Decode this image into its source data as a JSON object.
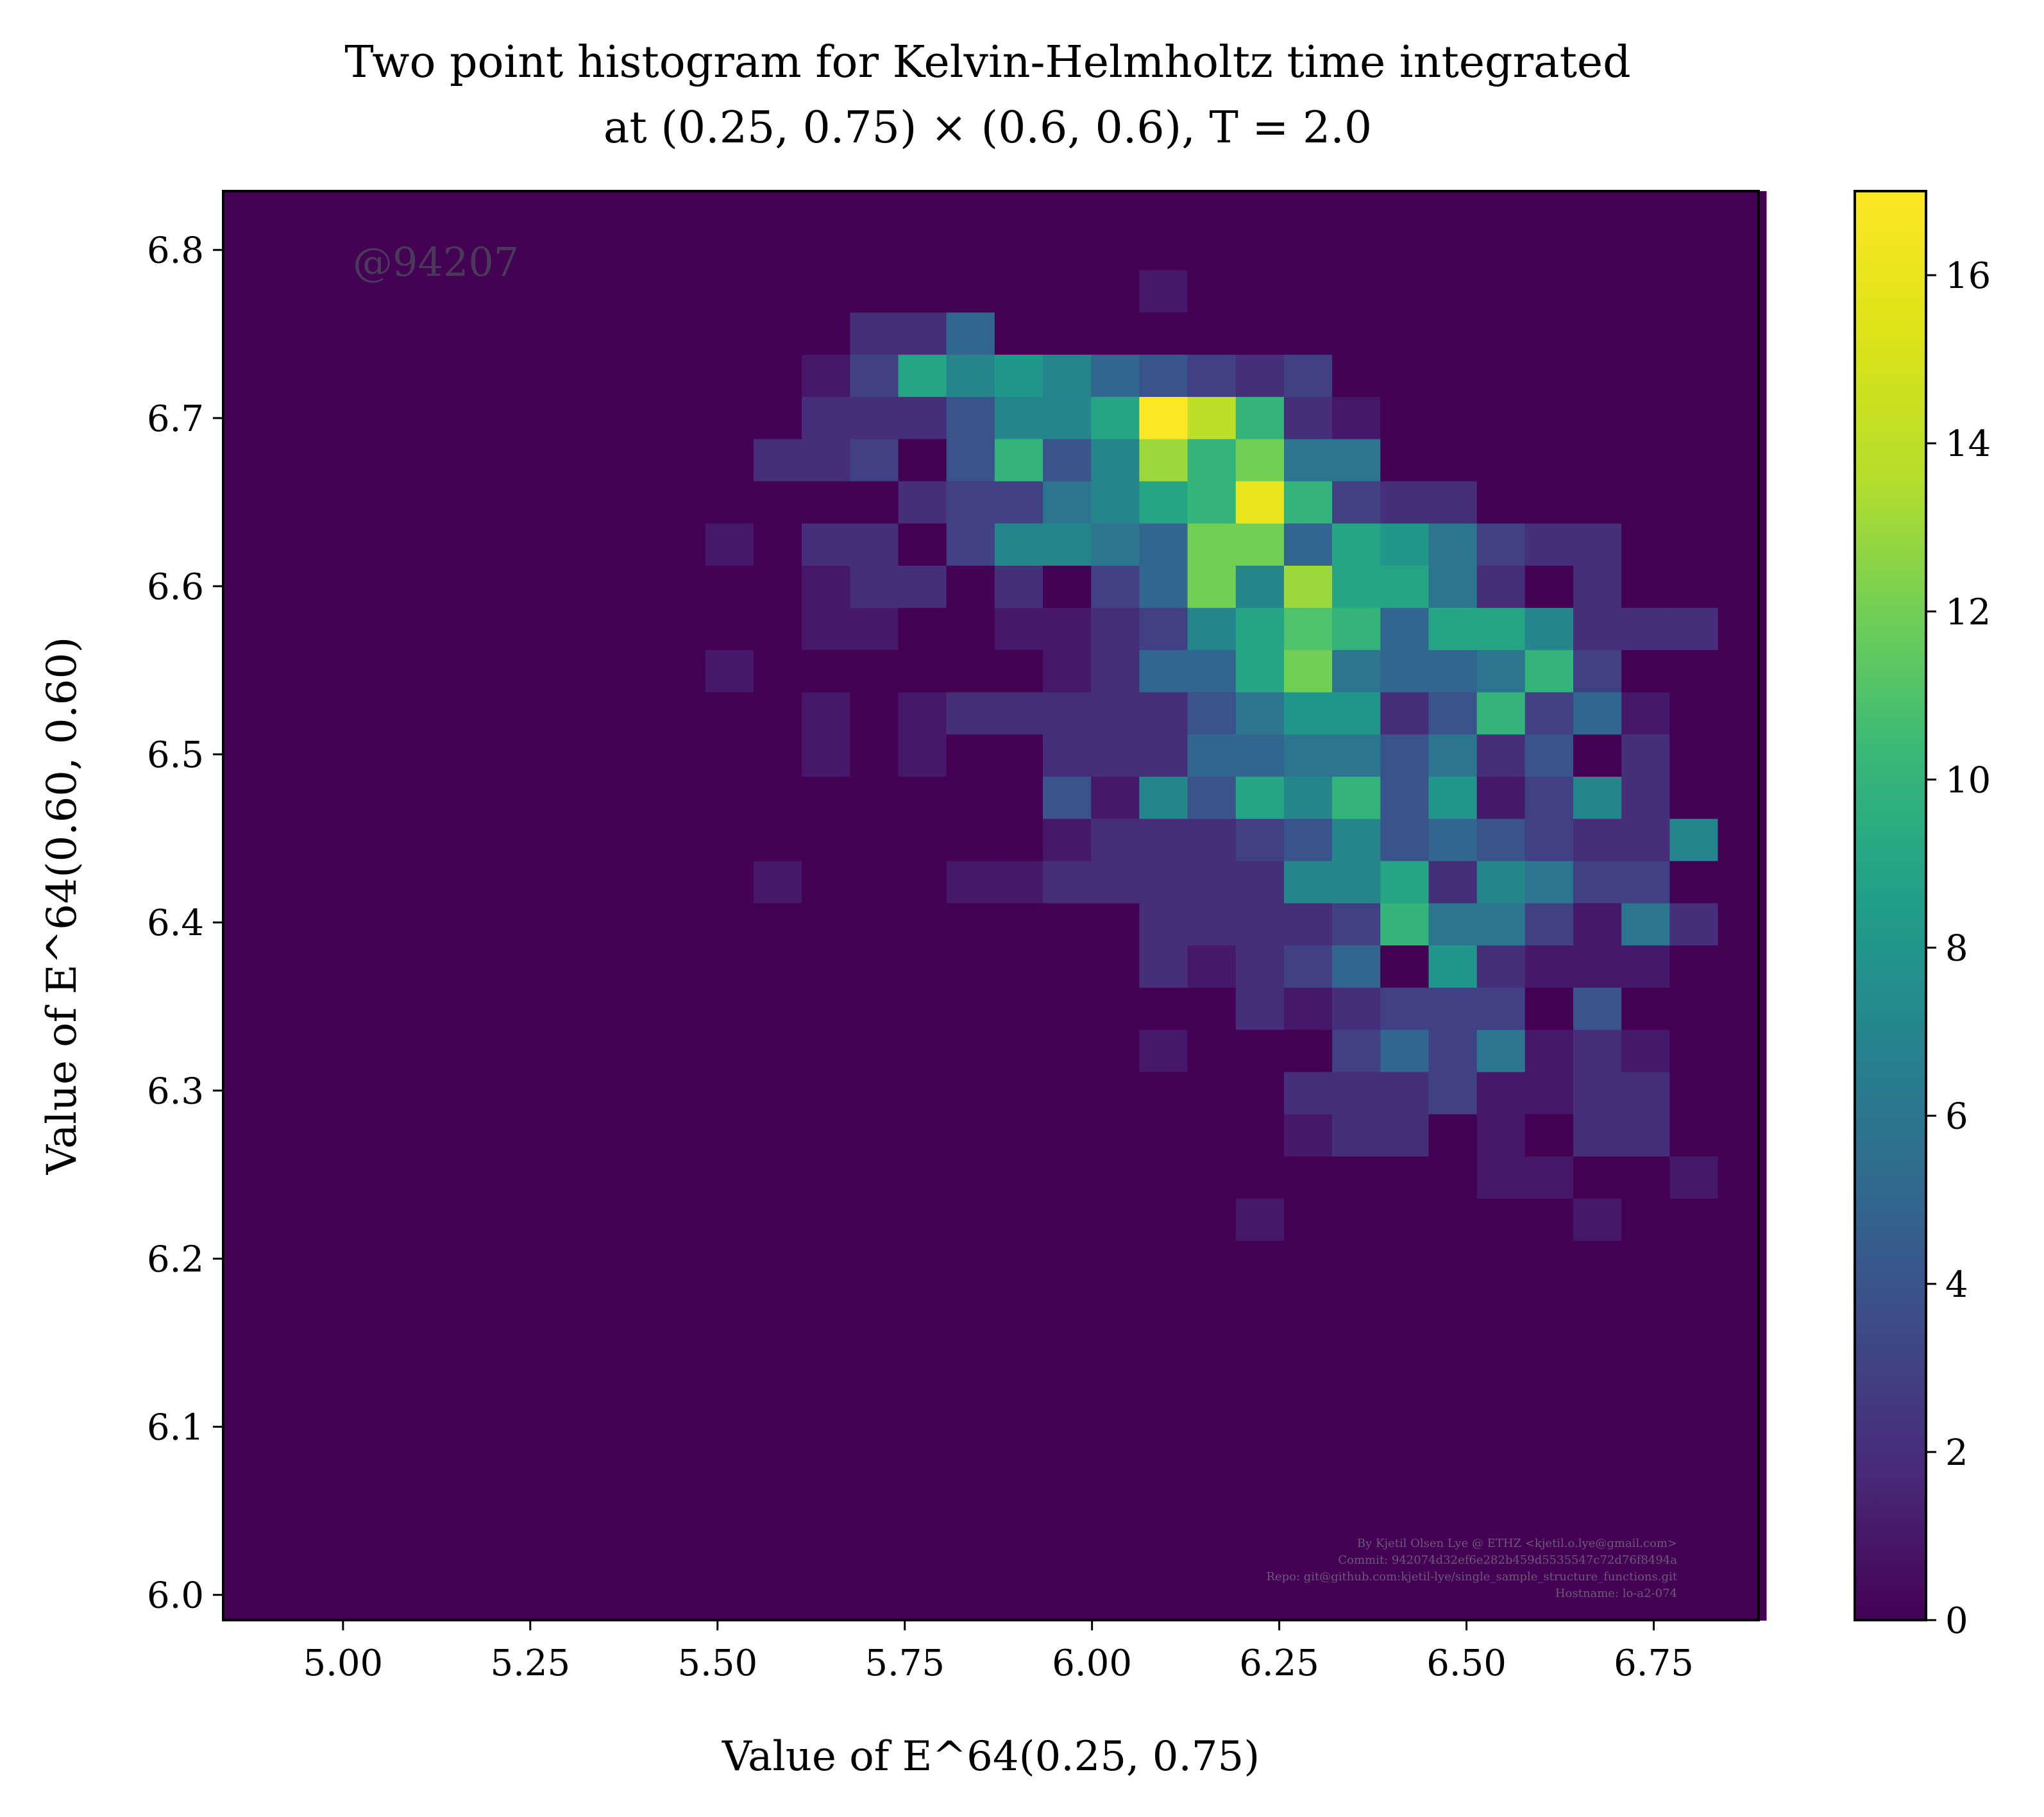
{
  "chart_data": {
    "type": "heatmap",
    "title": [
      "Two point histogram for Kelvin-Helmholtz time integrated",
      "at (0.25, 0.75) × (0.6, 0.6), T = 2.0"
    ],
    "xlabel": "Value of E^64(0.25, 0.75)",
    "ylabel": "Value of E^64(0.60, 0.60)",
    "xlim": [
      4.84,
      6.89
    ],
    "ylim": [
      5.985,
      6.835
    ],
    "x_ticks": [
      "5.00",
      "5.25",
      "5.50",
      "5.75",
      "6.00",
      "6.25",
      "6.50",
      "6.75"
    ],
    "y_ticks": [
      "6.0",
      "6.1",
      "6.2",
      "6.3",
      "6.4",
      "6.5",
      "6.6",
      "6.7",
      "6.8"
    ],
    "colorbar_ticks": [
      "0",
      "2",
      "4",
      "6",
      "8",
      "10",
      "12",
      "14",
      "16"
    ],
    "colorbar_range": [
      0,
      17
    ],
    "colormap": "viridis",
    "x_edges": [
      4.84,
      4.9044,
      4.9688,
      5.0331,
      5.0975,
      5.1619,
      5.2263,
      5.2906,
      5.355,
      5.4194,
      5.4838,
      5.5481,
      5.6125,
      5.6769,
      5.7413,
      5.8056,
      5.87,
      5.9344,
      5.9988,
      6.0631,
      6.1275,
      6.1919,
      6.2563,
      6.3206,
      6.385,
      6.4494,
      6.5138,
      6.5781,
      6.6425,
      6.7069,
      6.7713,
      6.8356,
      6.9
    ],
    "y_edges": [
      5.985,
      6.0101,
      6.0352,
      6.0603,
      6.0854,
      6.1105,
      6.1356,
      6.1607,
      6.1858,
      6.2109,
      6.236,
      6.2611,
      6.2862,
      6.3113,
      6.3364,
      6.3615,
      6.3866,
      6.4117,
      6.4368,
      6.4619,
      6.487,
      6.5121,
      6.5372,
      6.5623,
      6.5874,
      6.6125,
      6.6376,
      6.6627,
      6.6878,
      6.7129,
      6.738,
      6.7631,
      6.7882,
      6.8133,
      6.835
    ],
    "counts": [
      [
        0,
        0,
        0,
        0,
        0,
        0,
        0,
        0,
        0,
        0,
        0,
        0,
        0,
        0,
        0,
        0,
        0,
        0,
        0,
        0,
        0,
        0,
        0,
        0,
        0,
        0,
        0,
        0,
        0,
        0,
        0,
        0
      ],
      [
        0,
        0,
        0,
        0,
        0,
        0,
        0,
        0,
        0,
        0,
        0,
        0,
        0,
        0,
        0,
        0,
        0,
        0,
        0,
        0,
        0,
        0,
        0,
        0,
        0,
        0,
        0,
        0,
        0,
        0,
        0,
        0
      ],
      [
        0,
        0,
        0,
        0,
        0,
        0,
        0,
        0,
        0,
        0,
        0,
        0,
        0,
        0,
        0,
        0,
        0,
        0,
        0,
        0,
        0,
        0,
        0,
        0,
        0,
        0,
        0,
        0,
        0,
        0,
        0,
        0
      ],
      [
        0,
        0,
        0,
        0,
        0,
        0,
        0,
        0,
        0,
        0,
        0,
        0,
        0,
        0,
        0,
        0,
        0,
        0,
        0,
        0,
        0,
        0,
        0,
        0,
        0,
        0,
        0,
        0,
        0,
        0,
        0,
        0
      ],
      [
        0,
        0,
        0,
        0,
        0,
        0,
        0,
        0,
        0,
        0,
        0,
        0,
        0,
        0,
        0,
        0,
        0,
        0,
        0,
        0,
        0,
        0,
        0,
        0,
        0,
        0,
        0,
        0,
        0,
        0,
        0,
        0
      ],
      [
        0,
        0,
        0,
        0,
        0,
        0,
        0,
        0,
        0,
        0,
        0,
        0,
        0,
        0,
        0,
        0,
        0,
        0,
        0,
        0,
        0,
        0,
        0,
        0,
        0,
        0,
        0,
        0,
        0,
        0,
        0,
        0
      ],
      [
        0,
        0,
        0,
        0,
        0,
        0,
        0,
        0,
        0,
        0,
        0,
        0,
        0,
        0,
        0,
        0,
        0,
        0,
        0,
        0,
        0,
        0,
        0,
        0,
        0,
        0,
        0,
        0,
        0,
        0,
        0,
        0
      ],
      [
        0,
        0,
        0,
        0,
        0,
        0,
        0,
        0,
        0,
        0,
        0,
        0,
        0,
        0,
        0,
        0,
        0,
        0,
        0,
        0,
        0,
        0,
        0,
        0,
        0,
        0,
        0,
        0,
        0,
        0,
        0,
        0
      ],
      [
        0,
        0,
        0,
        0,
        0,
        0,
        0,
        0,
        0,
        0,
        0,
        0,
        0,
        0,
        0,
        0,
        0,
        0,
        0,
        0,
        0,
        0,
        0,
        0,
        0,
        0,
        0,
        0,
        0,
        0,
        0,
        0
      ],
      [
        0,
        0,
        0,
        0,
        0,
        0,
        0,
        0,
        0,
        0,
        0,
        0,
        0,
        0,
        0,
        0,
        0,
        0,
        0,
        0,
        0,
        1,
        0,
        0,
        0,
        0,
        0,
        0,
        1,
        0,
        0,
        0
      ],
      [
        0,
        0,
        0,
        0,
        0,
        0,
        0,
        0,
        0,
        0,
        0,
        0,
        0,
        0,
        0,
        0,
        0,
        0,
        0,
        0,
        0,
        0,
        0,
        0,
        0,
        0,
        1,
        1,
        0,
        0,
        1,
        0
      ],
      [
        0,
        0,
        0,
        0,
        0,
        0,
        0,
        0,
        0,
        0,
        0,
        0,
        0,
        0,
        0,
        0,
        0,
        0,
        0,
        0,
        0,
        0,
        1,
        2,
        2,
        0,
        1,
        0,
        2,
        2,
        0,
        0
      ],
      [
        0,
        0,
        0,
        0,
        0,
        0,
        0,
        0,
        0,
        0,
        0,
        0,
        0,
        0,
        0,
        0,
        0,
        0,
        0,
        0,
        0,
        0,
        2,
        2,
        2,
        3,
        1,
        1,
        2,
        2,
        0,
        0
      ],
      [
        0,
        0,
        0,
        0,
        0,
        0,
        0,
        0,
        0,
        0,
        0,
        0,
        0,
        0,
        0,
        0,
        0,
        0,
        0,
        1,
        0,
        0,
        0,
        3,
        5,
        3,
        6,
        1,
        2,
        1,
        0,
        0
      ],
      [
        0,
        0,
        0,
        0,
        0,
        0,
        0,
        0,
        0,
        0,
        0,
        0,
        0,
        0,
        0,
        0,
        0,
        0,
        0,
        0,
        0,
        2,
        1,
        2,
        3,
        3,
        3,
        0,
        4,
        0,
        0,
        0
      ],
      [
        0,
        0,
        0,
        0,
        0,
        0,
        0,
        0,
        0,
        0,
        0,
        0,
        0,
        0,
        0,
        0,
        0,
        0,
        0,
        2,
        1,
        2,
        3,
        5,
        0,
        8,
        2,
        1,
        1,
        1,
        0,
        0
      ],
      [
        0,
        0,
        0,
        0,
        0,
        0,
        0,
        0,
        0,
        0,
        0,
        0,
        0,
        0,
        0,
        0,
        0,
        0,
        0,
        2,
        2,
        2,
        2,
        3,
        10,
        6,
        6,
        3,
        1,
        6,
        2,
        0
      ],
      [
        0,
        0,
        0,
        0,
        0,
        0,
        0,
        0,
        0,
        0,
        0,
        1,
        0,
        0,
        0,
        1,
        1,
        2,
        2,
        2,
        2,
        2,
        7,
        7,
        9,
        2,
        7,
        6,
        3,
        3,
        0,
        0
      ],
      [
        0,
        0,
        0,
        0,
        0,
        0,
        0,
        0,
        0,
        0,
        0,
        0,
        0,
        0,
        0,
        0,
        0,
        1,
        2,
        2,
        2,
        3,
        4,
        7,
        4,
        5,
        4,
        3,
        2,
        2,
        7,
        0
      ],
      [
        0,
        0,
        0,
        0,
        0,
        0,
        0,
        0,
        0,
        0,
        0,
        0,
        0,
        0,
        0,
        0,
        0,
        4,
        1,
        7,
        4,
        9,
        7,
        10,
        4,
        8,
        1,
        3,
        7,
        2,
        0,
        0
      ],
      [
        0,
        0,
        0,
        0,
        0,
        0,
        0,
        0,
        0,
        0,
        0,
        0,
        1,
        0,
        1,
        0,
        0,
        2,
        2,
        2,
        5,
        5,
        6,
        6,
        4,
        6,
        2,
        4,
        0,
        2,
        0,
        0
      ],
      [
        0,
        0,
        0,
        0,
        0,
        0,
        0,
        0,
        0,
        0,
        0,
        0,
        1,
        0,
        1,
        2,
        2,
        2,
        2,
        2,
        4,
        6,
        8,
        8,
        2,
        4,
        10,
        3,
        5,
        1,
        0,
        0
      ],
      [
        0,
        0,
        0,
        0,
        0,
        0,
        0,
        0,
        0,
        0,
        1,
        0,
        0,
        0,
        0,
        0,
        0,
        1,
        2,
        5,
        5,
        9,
        12,
        6,
        5,
        5,
        6,
        10,
        3,
        0,
        0,
        0
      ],
      [
        0,
        0,
        0,
        0,
        0,
        0,
        0,
        0,
        0,
        0,
        0,
        0,
        1,
        1,
        0,
        0,
        1,
        1,
        2,
        3,
        7,
        9,
        11,
        10,
        5,
        9,
        9,
        7,
        2,
        2,
        2,
        0
      ],
      [
        0,
        0,
        0,
        0,
        0,
        0,
        0,
        0,
        0,
        0,
        0,
        0,
        1,
        2,
        2,
        0,
        2,
        0,
        3,
        5,
        12,
        7,
        13,
        9,
        9,
        6,
        2,
        0,
        2,
        0,
        0,
        0
      ],
      [
        0,
        0,
        0,
        0,
        0,
        0,
        0,
        0,
        0,
        0,
        1,
        0,
        2,
        2,
        0,
        3,
        7,
        7,
        6,
        5,
        12,
        12,
        5,
        9,
        8,
        6,
        3,
        2,
        2,
        0,
        0,
        0
      ],
      [
        0,
        0,
        0,
        0,
        0,
        0,
        0,
        0,
        0,
        0,
        0,
        0,
        0,
        0,
        2,
        3,
        3,
        6,
        7,
        9,
        10,
        16,
        10,
        3,
        2,
        2,
        0,
        0,
        0,
        0,
        0,
        0
      ],
      [
        0,
        0,
        0,
        0,
        0,
        0,
        0,
        0,
        0,
        0,
        0,
        2,
        2,
        3,
        0,
        4,
        10,
        4,
        7,
        13,
        10,
        12,
        6,
        6,
        0,
        0,
        0,
        0,
        0,
        0,
        0,
        0
      ],
      [
        0,
        0,
        0,
        0,
        0,
        0,
        0,
        0,
        0,
        0,
        0,
        0,
        2,
        2,
        2,
        4,
        7,
        7,
        9,
        17,
        14,
        10,
        2,
        1,
        0,
        0,
        0,
        0,
        0,
        0,
        0,
        0
      ],
      [
        0,
        0,
        0,
        0,
        0,
        0,
        0,
        0,
        0,
        0,
        0,
        0,
        1,
        3,
        9,
        7,
        8,
        7,
        5,
        4,
        3,
        2,
        3,
        0,
        0,
        0,
        0,
        0,
        0,
        0,
        0,
        0
      ],
      [
        0,
        0,
        0,
        0,
        0,
        0,
        0,
        0,
        0,
        0,
        0,
        0,
        0,
        2,
        2,
        5,
        0,
        0,
        0,
        0,
        0,
        0,
        0,
        0,
        0,
        0,
        0,
        0,
        0,
        0,
        0,
        0
      ],
      [
        0,
        0,
        0,
        0,
        0,
        0,
        0,
        0,
        0,
        0,
        0,
        0,
        0,
        0,
        0,
        0,
        0,
        0,
        0,
        1,
        0,
        0,
        0,
        0,
        0,
        0,
        0,
        0,
        0,
        0,
        0,
        0
      ],
      [
        0,
        0,
        0,
        0,
        0,
        0,
        0,
        0,
        0,
        0,
        0,
        0,
        0,
        0,
        0,
        0,
        0,
        0,
        0,
        0,
        0,
        0,
        0,
        0,
        0,
        0,
        0,
        0,
        0,
        0,
        0,
        0
      ],
      [
        0,
        0,
        0,
        0,
        0,
        0,
        0,
        0,
        0,
        0,
        0,
        0,
        0,
        0,
        0,
        0,
        0,
        0,
        0,
        0,
        0,
        0,
        0,
        0,
        0,
        0,
        0,
        0,
        0,
        0,
        0,
        0
      ]
    ]
  },
  "watermark": "@94207",
  "footer": [
    "By Kjetil Olsen Lye @ ETHZ <kjetil.o.lye@gmail.com>",
    "Commit: 942074d32ef6e282b459d5535547c72d76f8494a",
    "Repo: git@github.com:kjetil-lye/single_sample_structure_functions.git",
    "Hostname: lo-a2-074"
  ]
}
